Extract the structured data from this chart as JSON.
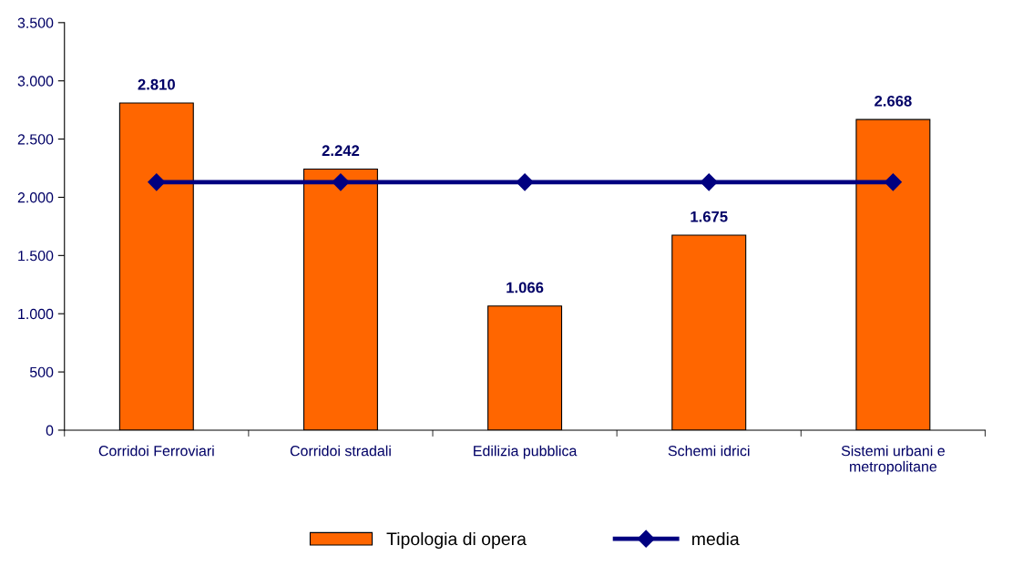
{
  "chart_data": {
    "type": "bar",
    "categories": [
      "Corridoi Ferroviari",
      "Corridoi stradali",
      "Edilizia pubblica",
      "Schemi idrici",
      "Sistemi urbani e\nmetropolitane"
    ],
    "series": [
      {
        "name": "Tipologia di opera",
        "color": "#ff6600",
        "values": [
          2810,
          2242,
          1066,
          1675,
          2668
        ],
        "value_labels": [
          "2.810",
          "2.242",
          "1.066",
          "1.675",
          "2.668"
        ]
      },
      {
        "name": "media",
        "type": "line",
        "color": "#000080",
        "marker": "diamond",
        "values": [
          2130,
          2130,
          2130,
          2130,
          2130
        ]
      }
    ],
    "ylim": [
      0,
      3500
    ],
    "yticks": [
      {
        "value": 0,
        "label": "0"
      },
      {
        "value": 500,
        "label": "500"
      },
      {
        "value": 1000,
        "label": "1.000"
      },
      {
        "value": 1500,
        "label": "1.500"
      },
      {
        "value": 2000,
        "label": "2.000"
      },
      {
        "value": 2500,
        "label": "2.500"
      },
      {
        "value": 3000,
        "label": "3.000"
      },
      {
        "value": 3500,
        "label": "3.500"
      }
    ],
    "grid": false,
    "legend": "bottom"
  }
}
